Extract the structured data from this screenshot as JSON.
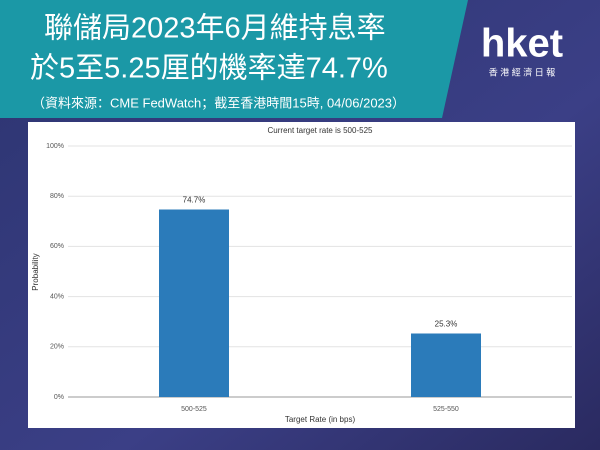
{
  "header": {
    "title_lines": [
      "聯儲局2023年6月維持息率",
      "於5至5.25厘的機率達74.7%"
    ],
    "source": "（資料來源：CME FedWatch；截至香港時間15時, 04/06/2023）"
  },
  "logo": {
    "name": "hket",
    "subtitle": "香 港 經 濟 日 報"
  },
  "chart_data": {
    "type": "bar",
    "title": "Current target rate is 500-525",
    "x_label": "Target Rate (in bps)",
    "y_label": "Probability",
    "categories": [
      "500-525",
      "525-550"
    ],
    "values": [
      74.7,
      25.3
    ],
    "value_labels": [
      "74.7%",
      "25.3%"
    ],
    "color": "#2b7bba",
    "ylim": [
      0,
      100
    ],
    "yticks": [
      {
        "value": 0,
        "label": "0%"
      },
      {
        "value": 20,
        "label": "20%"
      },
      {
        "value": 40,
        "label": "40%"
      },
      {
        "value": 60,
        "label": "60%"
      },
      {
        "value": 80,
        "label": "80%"
      },
      {
        "value": 100,
        "label": "100%"
      }
    ],
    "grid": true
  }
}
